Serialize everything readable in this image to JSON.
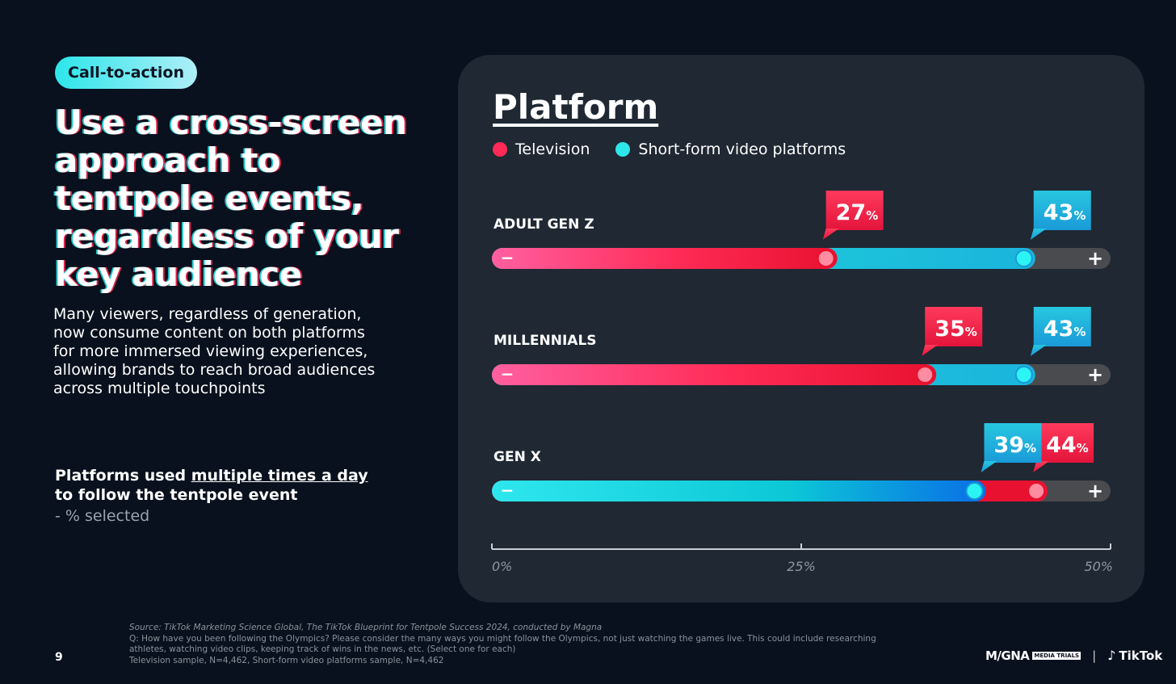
{
  "badge": "Call-to-action",
  "headline": "Use a cross-screen approach to tentpole events, regardless of your key audience",
  "body": "Many viewers, regardless of generation, now consume content on both platforms for more immersed viewing experiences, allowing brands to reach broad audiences across multiple touchpoints",
  "subtitle": {
    "pre": "Platforms used ",
    "underlined": "multiple times a day",
    "post": "to follow the tentpole event",
    "note": "-  % selected"
  },
  "panel": {
    "title": "Platform",
    "legend": [
      {
        "label": "Television",
        "color": "#ff2a55"
      },
      {
        "label": "Short-form video platforms",
        "color": "#2de6ea"
      }
    ]
  },
  "chart_data": {
    "type": "bar",
    "title": "Platform",
    "categories": [
      "ADULT GEN Z",
      "MILLENNIALS",
      "GEN X"
    ],
    "series": [
      {
        "name": "Television",
        "values": [
          27,
          35,
          44
        ],
        "color": "#ff2a55"
      },
      {
        "name": "Short-form video platforms",
        "values": [
          43,
          43,
          39
        ],
        "color": "#2de6ea"
      }
    ],
    "value_suffix": "%",
    "xlim": [
      0,
      50
    ],
    "ticks": [
      0,
      25,
      50
    ],
    "tick_labels": [
      "0%",
      "25%",
      "50%"
    ],
    "bar_minus": "−",
    "bar_plus": "+"
  },
  "footer": {
    "source": "Source: TikTok Marketing Science Global, The TikTok Blueprint for Tentpole Success 2024, conducted by Magna",
    "question": "Q: How have you been following the Olympics? Please consider the many ways you might follow the Olympics, not just watching the games live. This could include researching athletes, watching video clips, keeping track of wins in the news, etc. (Select one for each)",
    "sample": "Television sample, N=4,462, Short-form video platforms sample, N=4,462",
    "page": "9",
    "logo_magna": "M/GNA",
    "logo_mediatrials": "MEDIA TRIALS",
    "logo_separator": "|",
    "logo_tiktok": "TikTok"
  }
}
